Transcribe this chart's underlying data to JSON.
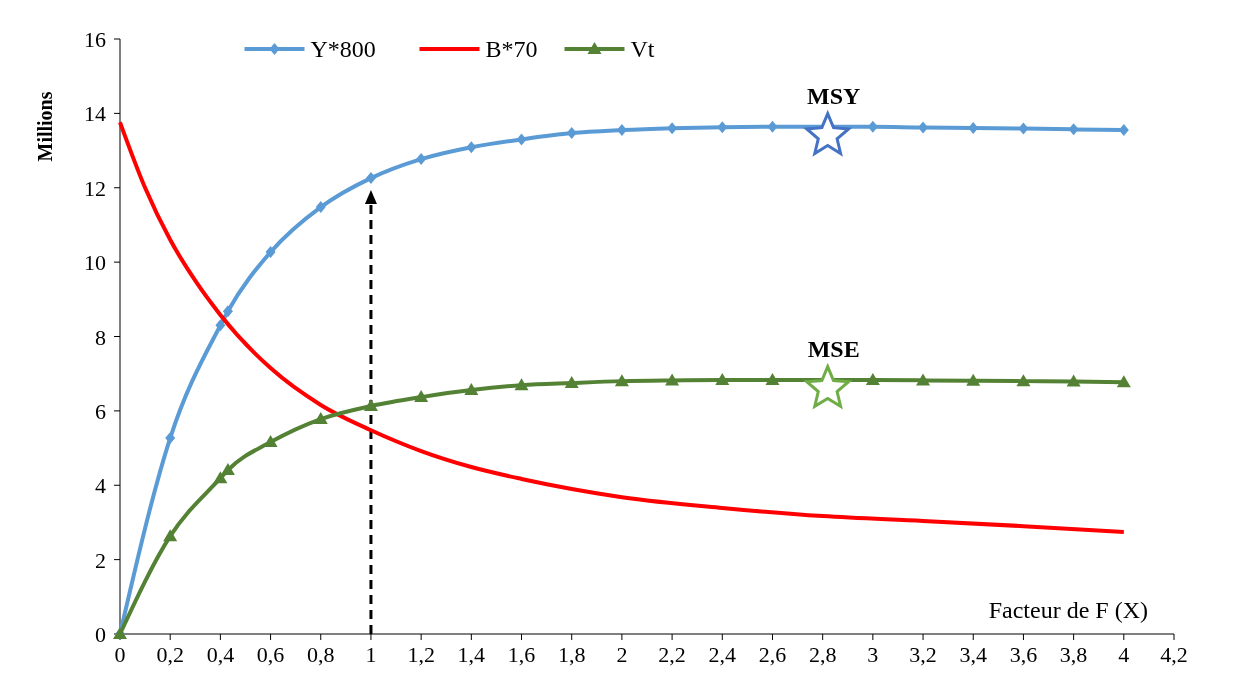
{
  "chart_data": {
    "type": "line",
    "xlabel": "Facteur de F (X)",
    "ylabel": "Millions",
    "xlim": [
      0,
      4.2
    ],
    "ylim": [
      0,
      16
    ],
    "xticks": [
      0,
      {
        "value": 0.2,
        "label": "0,2"
      },
      {
        "value": 0.4,
        "label": "0,4"
      },
      {
        "value": 0.6,
        "label": "0,6"
      },
      {
        "value": 0.8,
        "label": "0,8"
      },
      1,
      {
        "value": 1.2,
        "label": "1,2"
      },
      {
        "value": 1.4,
        "label": "1,4"
      },
      {
        "value": 1.6,
        "label": "1,6"
      },
      {
        "value": 1.8,
        "label": "1,8"
      },
      2,
      {
        "value": 2.2,
        "label": "2,2"
      },
      {
        "value": 2.4,
        "label": "2,4"
      },
      {
        "value": 2.6,
        "label": "2,6"
      },
      {
        "value": 2.8,
        "label": "2,8"
      },
      3,
      {
        "value": 3.2,
        "label": "3,2"
      },
      {
        "value": 3.4,
        "label": "3,4"
      },
      {
        "value": 3.6,
        "label": "3,6"
      },
      {
        "value": 3.8,
        "label": "3,8"
      },
      4,
      {
        "value": 4.2,
        "label": "4,2"
      }
    ],
    "yticks": [
      0,
      2,
      4,
      6,
      8,
      10,
      12,
      14,
      16
    ],
    "grid": false,
    "legend": "top",
    "line_style": "solid",
    "series": [
      {
        "name": "Y*800",
        "color": "#5b9bd5",
        "marker": "diamond",
        "x": [
          0,
          0.2,
          0.4,
          0.43,
          0.6,
          0.8,
          1,
          1.2,
          1.4,
          1.6,
          1.8,
          2,
          2.2,
          2.4,
          2.6,
          3,
          3.2,
          3.4,
          3.6,
          3.8,
          4
        ],
        "values": [
          0,
          5.27,
          8.3,
          8.68,
          10.27,
          11.48,
          12.26,
          12.77,
          13.09,
          13.3,
          13.47,
          13.55,
          13.6,
          13.63,
          13.64,
          13.64,
          13.62,
          13.61,
          13.59,
          13.57,
          13.55
        ]
      },
      {
        "name": "B*70",
        "color": "#ff0000",
        "marker": "none",
        "x": [
          0,
          0.1,
          0.2,
          0.3,
          0.4,
          0.6,
          0.8,
          1,
          1.2,
          1.4,
          1.6,
          1.8,
          2,
          2.4,
          2.8,
          3.2,
          3.6,
          4
        ],
        "values": [
          13.76,
          12.0,
          10.6,
          9.5,
          8.58,
          7.15,
          6.16,
          5.48,
          4.92,
          4.49,
          4.17,
          3.9,
          3.68,
          3.39,
          3.17,
          3.04,
          2.9,
          2.74
        ]
      },
      {
        "name": "Vt",
        "color": "#548235",
        "marker": "triangle",
        "x": [
          0,
          0.2,
          0.4,
          0.43,
          0.6,
          0.8,
          1,
          1.2,
          1.4,
          1.6,
          1.8,
          2,
          2.2,
          2.4,
          2.6,
          3,
          3.2,
          3.4,
          3.6,
          3.8,
          4
        ],
        "values": [
          0,
          2.63,
          4.19,
          4.41,
          5.16,
          5.78,
          6.13,
          6.37,
          6.56,
          6.69,
          6.75,
          6.8,
          6.82,
          6.83,
          6.83,
          6.83,
          6.82,
          6.81,
          6.8,
          6.79,
          6.77
        ]
      },
      {
        "type": "scatter",
        "color": "#4472c4",
        "marker": "star",
        "x": [
          2.82
        ],
        "values": [
          13.4
        ]
      },
      {
        "type": "scatter",
        "color": "#70ad47",
        "marker": "star",
        "x": [
          2.82
        ],
        "values": [
          6.6
        ]
      }
    ],
    "ref_lines": [
      {
        "axis": "x",
        "value": 1,
        "color": "#000000",
        "line_style": "dashed"
      }
    ],
    "annotations": [
      "MSY",
      "MSE"
    ]
  }
}
